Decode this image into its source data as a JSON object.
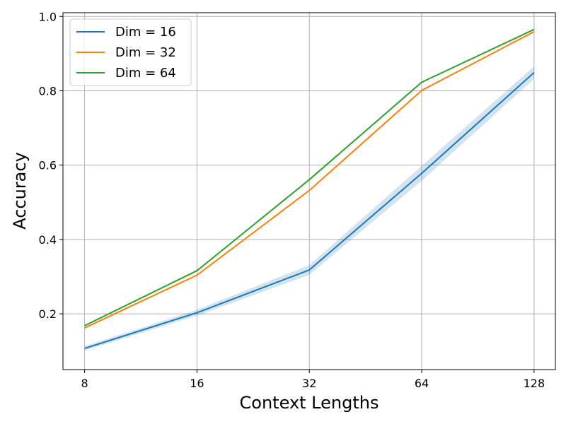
{
  "chart_data": {
    "type": "line",
    "x_scale": "log2",
    "x": [
      8,
      16,
      32,
      64,
      128
    ],
    "x_tick_labels": [
      "8",
      "16",
      "32",
      "64",
      "128"
    ],
    "y_ticks": [
      0.2,
      0.4,
      0.6,
      0.8,
      1.0
    ],
    "y_tick_labels": [
      "0.2",
      "0.4",
      "0.6",
      "0.8",
      "1.0"
    ],
    "xlim": [
      7,
      146
    ],
    "ylim": [
      0.05,
      1.01
    ],
    "xlabel": "Context Lengths",
    "ylabel": "Accuracy",
    "grid": true,
    "legend_position": "top-left",
    "series": [
      {
        "name": "Dim = 16",
        "color": "#1f77b4",
        "values": [
          0.107,
          0.203,
          0.318,
          0.578,
          0.849
        ],
        "band_lower": [
          0.101,
          0.195,
          0.305,
          0.558,
          0.832
        ],
        "band_upper": [
          0.113,
          0.211,
          0.331,
          0.598,
          0.866
        ]
      },
      {
        "name": "Dim = 32",
        "color": "#ff7f0e",
        "values": [
          0.162,
          0.304,
          0.532,
          0.801,
          0.959
        ]
      },
      {
        "name": "Dim = 64",
        "color": "#2ca02c",
        "values": [
          0.168,
          0.316,
          0.561,
          0.823,
          0.965
        ]
      }
    ]
  }
}
